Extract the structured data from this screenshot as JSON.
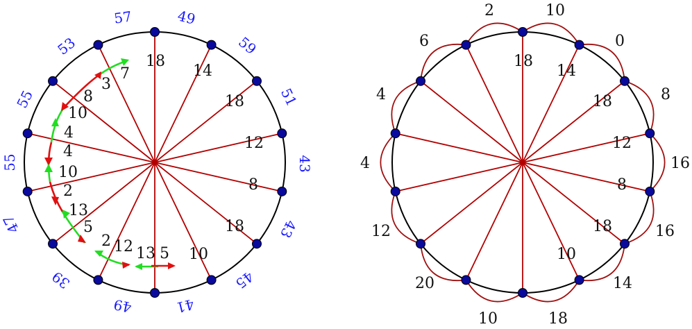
{
  "colors": {
    "circle": "#000000",
    "spoke": "#b30000",
    "node": "#0a0a9c",
    "blue_label": "#1a1aff",
    "red_arrow": "#e01010",
    "green_arrow": "#22dd22",
    "arc": "#a01010"
  },
  "left": {
    "outer_labels": [
      "57",
      "49",
      "59",
      "51",
      "43",
      "43",
      "45",
      "41",
      "49",
      "39",
      "47",
      "55",
      "55",
      "53"
    ],
    "spoke_numbers": [
      "18",
      "14",
      "18",
      "12",
      "8",
      "18",
      "10"
    ],
    "arrow_numbers": [
      "7",
      "3",
      "8",
      "10",
      "4",
      "4",
      "10",
      "2",
      "13",
      "5",
      "2",
      "12",
      "13",
      "5"
    ]
  },
  "right": {
    "outer_labels": [
      "2",
      "10",
      "0",
      "8",
      "16",
      "16",
      "14",
      "18",
      "10",
      "20",
      "12",
      "4",
      "4",
      "6"
    ],
    "spoke_numbers": [
      "18",
      "14",
      "18",
      "12",
      "8",
      "18",
      "10"
    ]
  }
}
